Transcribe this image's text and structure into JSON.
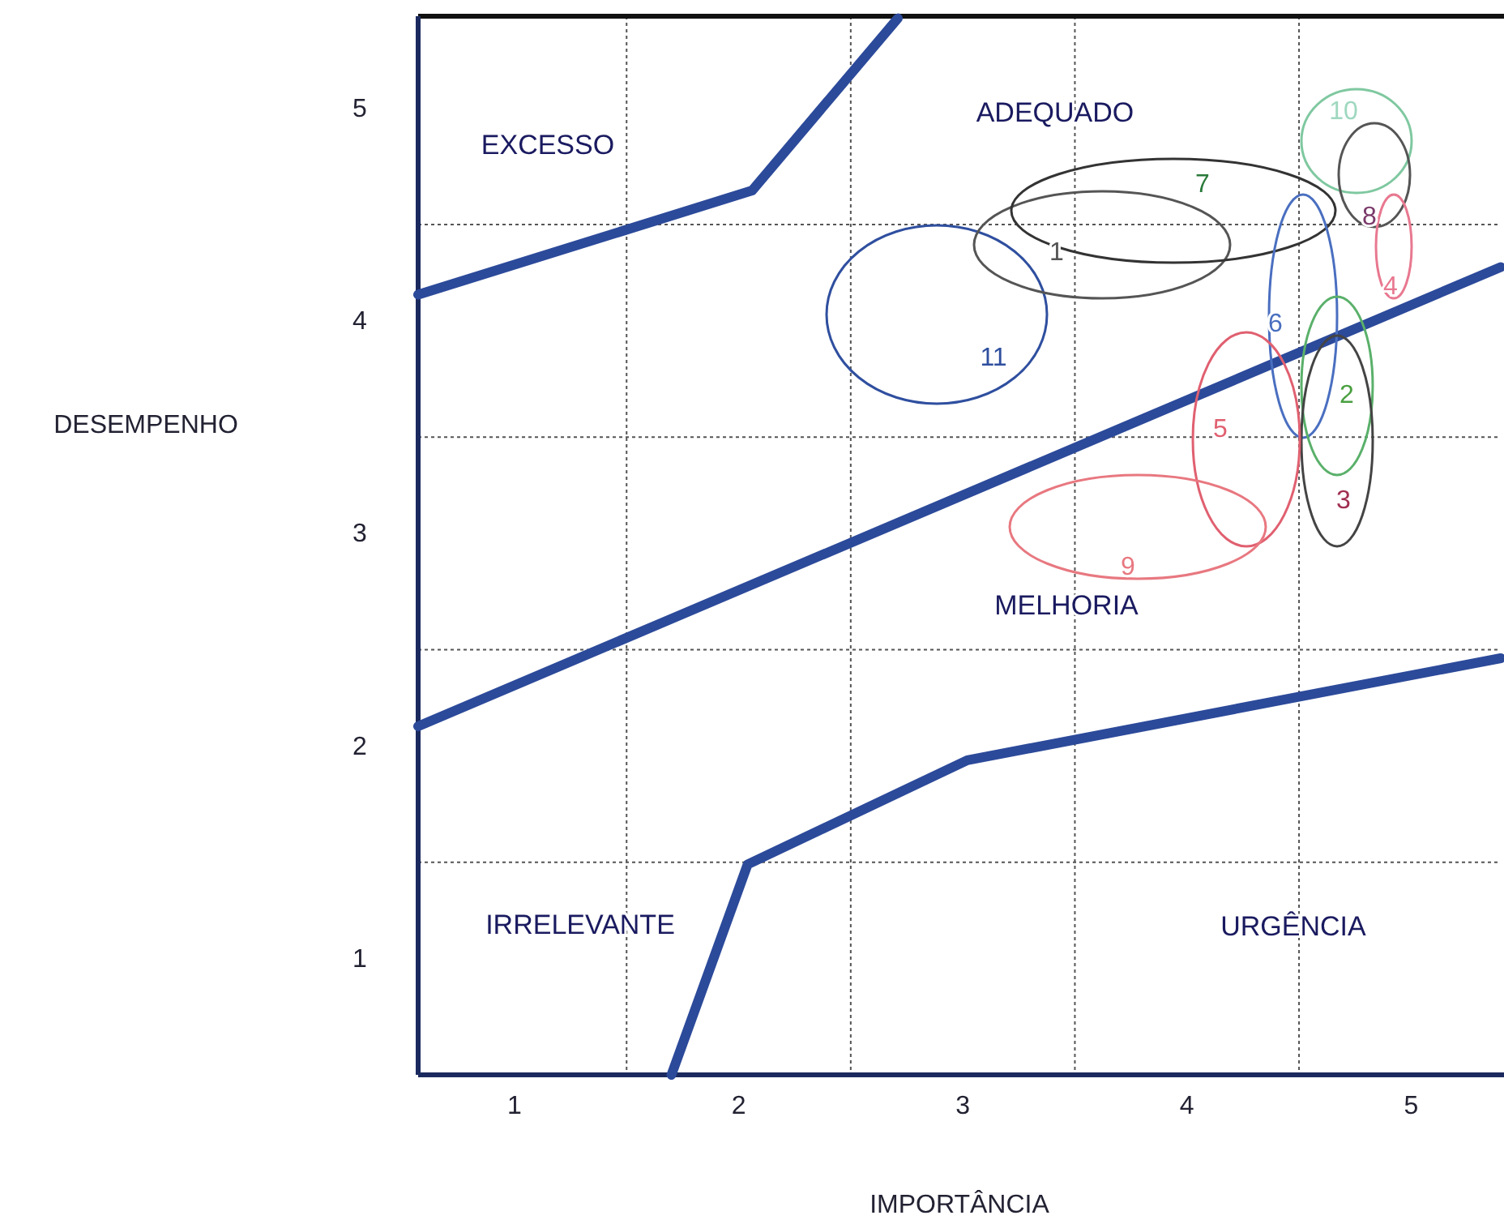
{
  "chart_data": {
    "type": "line",
    "xlabel": "IMPORTÂNCIA",
    "ylabel": "DESEMPENHO",
    "xlim": [
      0.57,
      5.4
    ],
    "ylim": [
      0.45,
      5.43
    ],
    "xticks": [
      1,
      {
        "value": 1.5,
        "label": null
      },
      2,
      {
        "value": 2.5,
        "label": null
      },
      3,
      {
        "value": 3.5,
        "label": null
      },
      4,
      {
        "value": 4.5,
        "label": null
      },
      5
    ],
    "yticks": [
      1,
      {
        "value": 1.45,
        "label": null
      },
      2,
      {
        "value": 2.45,
        "label": null
      },
      3,
      {
        "value": 3.45,
        "label": null
      },
      4,
      {
        "value": 4.45,
        "label": null
      },
      5
    ],
    "grid": true,
    "series": [
      {
        "color": "#2c4a9a",
        "x": [
          0.57,
          2.06,
          2.71
        ],
        "values": [
          4.12,
          4.61,
          5.42
        ]
      },
      {
        "color": "#2c4a9a",
        "x": [
          0.57,
          5.4
        ],
        "values": [
          2.09,
          4.25
        ]
      },
      {
        "color": "#2c4a9a",
        "x": [
          1.7,
          2.04,
          3.02,
          5.4
        ],
        "values": [
          0.45,
          1.44,
          1.93,
          2.41
        ]
      }
    ],
    "annotations": [
      "EXCESSO",
      "ADEQUADO",
      "MELHORIA",
      "IRRELEVANTE",
      "URGÊNCIA",
      "11",
      "1",
      "7",
      "10",
      "8",
      "4",
      "6",
      "2",
      "3",
      "5",
      "9"
    ]
  }
}
